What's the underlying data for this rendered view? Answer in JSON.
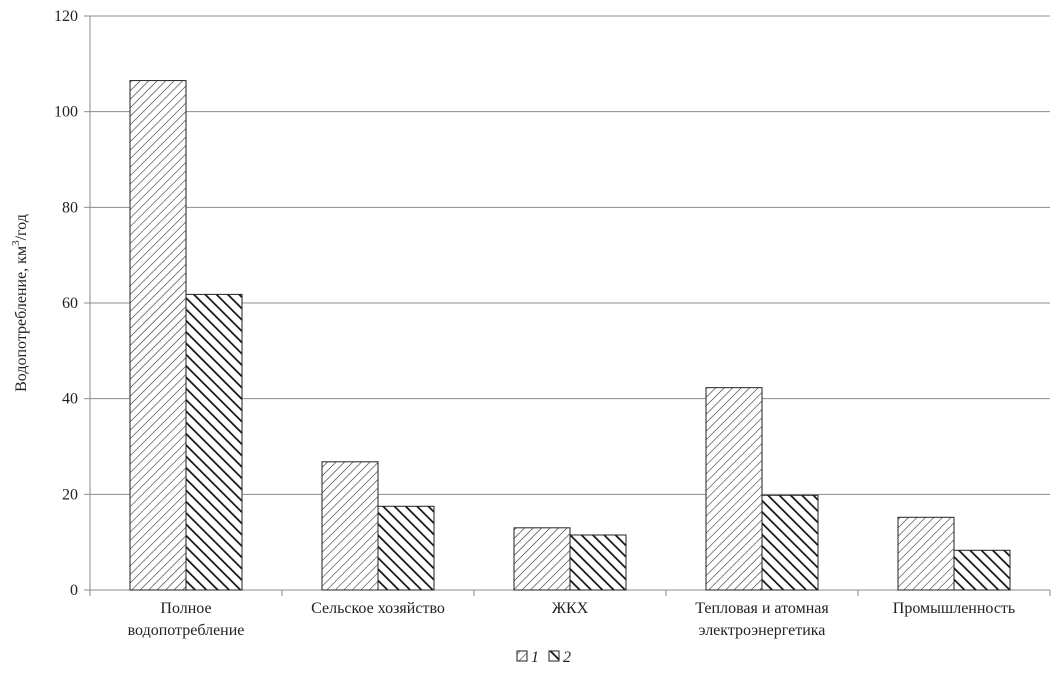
{
  "chart_data": {
    "type": "bar",
    "ylabel": "Водопотребление, км",
    "ylabel_sup": "3",
    "ylabel_suffix": "/год",
    "xlabel": "",
    "ylim": [
      0,
      120
    ],
    "yticks": [
      0,
      20,
      40,
      60,
      80,
      100,
      120
    ],
    "grid": true,
    "legend_position": "bottom",
    "categories": [
      [
        "Полное",
        "водопотребление"
      ],
      [
        "Сельское хозяйство"
      ],
      [
        "ЖКХ"
      ],
      [
        "Тепловая и атомная",
        "электроэнергетика"
      ],
      [
        "Промышленность"
      ]
    ],
    "series": [
      {
        "name": "1",
        "values": [
          106.5,
          26.8,
          13,
          42.3,
          15.2
        ],
        "pattern": "fine-diagonal-hatch"
      },
      {
        "name": "2",
        "values": [
          61.8,
          17.5,
          11.5,
          19.8,
          8.3
        ],
        "pattern": "bold-diagonal-hatch"
      }
    ]
  }
}
